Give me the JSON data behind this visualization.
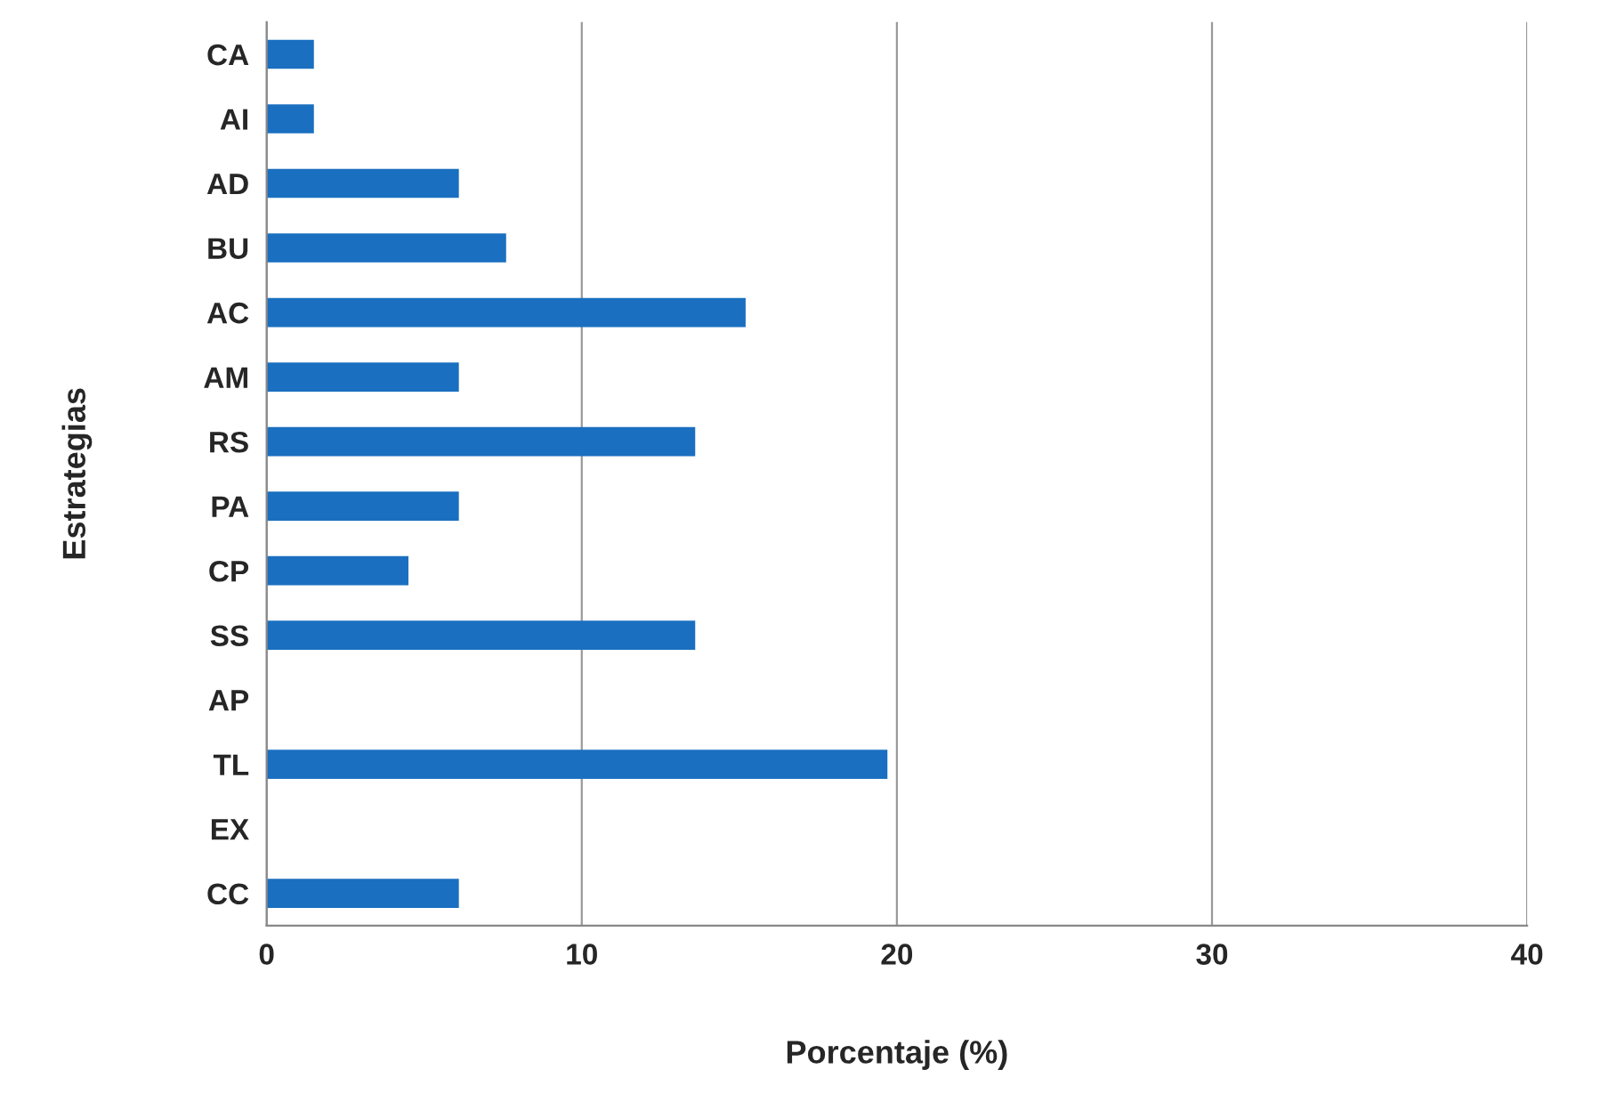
{
  "chart_data": {
    "type": "bar",
    "orientation": "horizontal",
    "xlabel": "Porcentaje (%)",
    "ylabel": "Estrategias",
    "categories": [
      "CA",
      "AI",
      "AD",
      "BU",
      "AC",
      "AM",
      "RS",
      "PA",
      "CP",
      "SS",
      "AP",
      "TL",
      "EX",
      "CC"
    ],
    "values": [
      1.5,
      1.5,
      6.1,
      7.6,
      15.2,
      6.1,
      13.6,
      6.1,
      4.5,
      13.6,
      0,
      19.7,
      0,
      6.1
    ],
    "color": "#1a6fc0",
    "xlim": [
      0,
      40
    ],
    "xticks": [
      0,
      10,
      20,
      30,
      40
    ],
    "grid": "x"
  }
}
